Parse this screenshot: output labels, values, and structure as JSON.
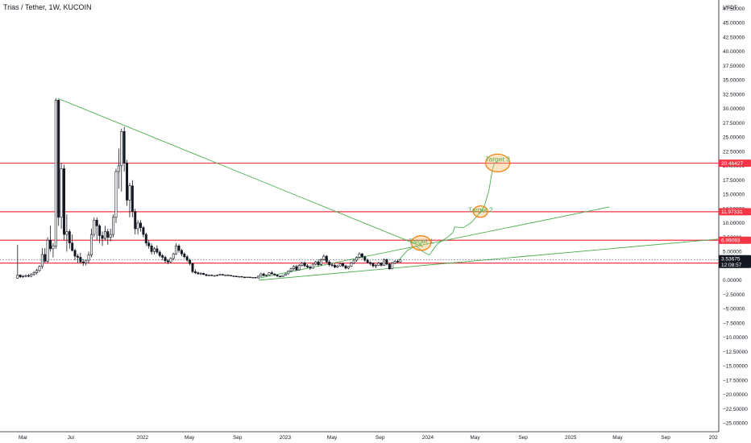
{
  "chart_title": "Trias / Tether, 1W, KUCOIN",
  "chart_data": {
    "type": "candlestick",
    "title": "Trias / Tether, 1W, KUCOIN",
    "y_axis": {
      "currency": "USDT",
      "ticks": [
        "47.50000",
        "45.00000",
        "42.50000",
        "40.00000",
        "37.50000",
        "35.00000",
        "32.50000",
        "30.00000",
        "27.50000",
        "25.00000",
        "22.50000",
        "20.00000",
        "17.50000",
        "15.00000",
        "12.50000",
        "10.00000",
        "7.50000",
        "5.00000",
        "2.50000",
        "0.00000",
        "−2.50000",
        "−5.00000",
        "−7.50000",
        "−10.00000",
        "−12.50000",
        "−15.00000",
        "−17.50000",
        "−20.00000",
        "−22.50000",
        "−25.00000"
      ],
      "range": [
        -26.5,
        49
      ]
    },
    "x_axis": {
      "ticks": [
        "Mar",
        "Jul",
        "2022",
        "May",
        "Sep",
        "2023",
        "May",
        "Sep",
        "2024",
        "May",
        "Sep",
        "2025",
        "May",
        "Sep",
        "202"
      ],
      "range": [
        "2021-01-01",
        "2026-01-15"
      ],
      "tick_dates": [
        "2021-03-01",
        "2021-07-01",
        "2022-01-01",
        "2022-05-01",
        "2022-09-01",
        "2023-01-01",
        "2023-05-01",
        "2023-09-01",
        "2024-01-01",
        "2024-05-01",
        "2024-09-01",
        "2025-01-01",
        "2025-05-01",
        "2025-09-01",
        "2026-01-01"
      ]
    },
    "horizontal_levels": [
      {
        "value": 20.46427,
        "label": "20.46427",
        "color": "#f23645"
      },
      {
        "value": 11.97331,
        "label": "11.97331",
        "color": "#f23645"
      },
      {
        "value": 6.99093,
        "label": "6.99093",
        "color": "#f23645"
      },
      {
        "value": 2.99001,
        "label": "2.99001",
        "color": "#f23645"
      }
    ],
    "current_price": {
      "value": 3.53675,
      "label": "3.53675",
      "countdown": "12:08:57",
      "color": "#131722"
    },
    "trendlines": [
      {
        "from": [
          "2021-05-29",
          31.8
        ],
        "to": [
          "2023-12-20",
          5.8
        ],
        "color": "#4caf50"
      },
      {
        "from": [
          "2022-10-25",
          0.35
        ],
        "to": [
          "2025-04-10",
          12.8
        ],
        "color": "#4caf50"
      },
      {
        "from": [
          "2022-10-25",
          0.0
        ],
        "to": [
          "2026-01-15",
          7.2
        ],
        "color": "#4caf50"
      }
    ],
    "projection_path": [
      [
        "2023-10-20",
        3.6
      ],
      [
        "2023-11-10",
        5.2
      ],
      [
        "2023-12-01",
        6.0
      ],
      [
        "2023-12-20",
        5.0
      ],
      [
        "2024-01-05",
        4.4
      ],
      [
        "2024-01-25",
        6.3
      ],
      [
        "2024-02-20",
        7.5
      ],
      [
        "2024-03-05",
        8.3
      ],
      [
        "2024-03-10",
        9.3
      ],
      [
        "2024-04-01",
        9.2
      ],
      [
        "2024-04-20",
        10.0
      ],
      [
        "2024-05-10",
        11.5
      ],
      [
        "2024-05-25",
        13.0
      ],
      [
        "2024-06-05",
        15.5
      ],
      [
        "2024-06-15",
        19.5
      ],
      [
        "2024-06-20",
        20.5
      ]
    ],
    "targets": [
      {
        "label": "Target 1",
        "date": "2023-12-15",
        "value": 6.5
      },
      {
        "label": "Target 2",
        "date": "2024-05-15",
        "value": 12.0
      },
      {
        "label": "Target 3",
        "date": "2024-06-28",
        "value": 20.5
      }
    ],
    "candles": [
      [
        "2021-02-15",
        0.35,
        6.2,
        0.3,
        0.9
      ],
      [
        "2021-02-22",
        0.9,
        1.0,
        0.4,
        0.6
      ],
      [
        "2021-03-01",
        0.6,
        0.9,
        0.4,
        0.7
      ],
      [
        "2021-03-08",
        0.7,
        1.0,
        0.5,
        0.8
      ],
      [
        "2021-03-15",
        0.8,
        1.1,
        0.5,
        0.7
      ],
      [
        "2021-03-22",
        0.7,
        1.2,
        0.5,
        1.0
      ],
      [
        "2021-03-29",
        1.0,
        1.6,
        0.8,
        1.3
      ],
      [
        "2021-04-05",
        1.3,
        2.0,
        1.0,
        1.7
      ],
      [
        "2021-04-12",
        1.7,
        2.6,
        1.4,
        2.4
      ],
      [
        "2021-04-19",
        2.4,
        5.6,
        2.0,
        4.5
      ],
      [
        "2021-04-26",
        4.5,
        5.6,
        3.0,
        3.3
      ],
      [
        "2021-05-03",
        3.3,
        7.5,
        3.0,
        7.0
      ],
      [
        "2021-05-10",
        7.0,
        9.5,
        5.0,
        5.5
      ],
      [
        "2021-05-17",
        5.5,
        6.5,
        4.0,
        6.0
      ],
      [
        "2021-05-24",
        6.0,
        31.8,
        5.5,
        31.5
      ],
      [
        "2021-05-31",
        31.5,
        31.6,
        9.5,
        11.0
      ],
      [
        "2021-06-07",
        11.0,
        20.5,
        9.0,
        19.5
      ],
      [
        "2021-06-14",
        19.5,
        20.2,
        7.0,
        8.0
      ],
      [
        "2021-06-21",
        8.0,
        11.5,
        5.0,
        8.5
      ],
      [
        "2021-06-28",
        8.5,
        8.9,
        5.5,
        6.5
      ],
      [
        "2021-07-05",
        6.5,
        8.0,
        5.0,
        5.2
      ],
      [
        "2021-07-12",
        5.2,
        5.5,
        3.5,
        4.2
      ],
      [
        "2021-07-19",
        4.2,
        4.6,
        3.0,
        4.0
      ],
      [
        "2021-07-26",
        4.0,
        4.8,
        3.0,
        3.2
      ],
      [
        "2021-08-02",
        3.2,
        3.7,
        2.5,
        3.0
      ],
      [
        "2021-08-09",
        3.0,
        3.6,
        2.6,
        3.5
      ],
      [
        "2021-08-16",
        3.5,
        5.0,
        3.0,
        4.4
      ],
      [
        "2021-08-23",
        4.4,
        9.0,
        4.0,
        8.0
      ],
      [
        "2021-08-30",
        8.0,
        11.0,
        7.5,
        10.5
      ],
      [
        "2021-09-06",
        10.5,
        11.0,
        7.0,
        9.5
      ],
      [
        "2021-09-13",
        9.5,
        9.8,
        6.5,
        7.8
      ],
      [
        "2021-09-20",
        7.8,
        8.5,
        6.0,
        7.3
      ],
      [
        "2021-09-27",
        7.3,
        9.5,
        7.0,
        8.5
      ],
      [
        "2021-10-04",
        8.5,
        9.0,
        6.2,
        7.5
      ],
      [
        "2021-10-11",
        7.5,
        9.0,
        6.8,
        8.0
      ],
      [
        "2021-10-18",
        8.0,
        11.5,
        7.5,
        11.0
      ],
      [
        "2021-10-25",
        11.0,
        19.5,
        10.0,
        19.0
      ],
      [
        "2021-11-01",
        19.0,
        23.0,
        16.0,
        20.0
      ],
      [
        "2021-11-08",
        20.0,
        26.5,
        15.5,
        26.0
      ],
      [
        "2021-11-15",
        26.0,
        26.8,
        19.0,
        20.5
      ],
      [
        "2021-11-22",
        20.5,
        21.0,
        13.0,
        14.0
      ],
      [
        "2021-11-29",
        14.0,
        17.0,
        11.0,
        16.5
      ],
      [
        "2021-12-06",
        16.5,
        17.5,
        11.0,
        12.0
      ],
      [
        "2021-12-13",
        12.0,
        12.5,
        8.0,
        9.0
      ],
      [
        "2021-12-20",
        9.0,
        10.5,
        8.0,
        10.0
      ],
      [
        "2021-12-27",
        10.0,
        10.5,
        8.5,
        9.2
      ],
      [
        "2022-01-03",
        9.2,
        9.5,
        7.5,
        8.0
      ],
      [
        "2022-01-10",
        8.0,
        8.3,
        6.0,
        6.5
      ],
      [
        "2022-01-17",
        6.5,
        7.0,
        5.5,
        6.0
      ],
      [
        "2022-01-24",
        6.0,
        6.4,
        4.5,
        5.0
      ],
      [
        "2022-01-31",
        5.0,
        5.8,
        4.5,
        5.5
      ],
      [
        "2022-02-07",
        5.5,
        6.1,
        4.6,
        4.9
      ],
      [
        "2022-02-14",
        4.9,
        5.2,
        4.0,
        4.3
      ],
      [
        "2022-02-21",
        4.3,
        4.6,
        3.5,
        4.0
      ],
      [
        "2022-02-28",
        4.0,
        4.3,
        3.0,
        3.4
      ],
      [
        "2022-03-07",
        3.4,
        3.7,
        2.8,
        3.2
      ],
      [
        "2022-03-14",
        3.2,
        4.0,
        3.0,
        3.8
      ],
      [
        "2022-03-21",
        3.8,
        4.8,
        3.5,
        4.6
      ],
      [
        "2022-03-28",
        4.6,
        6.5,
        4.4,
        6.0
      ],
      [
        "2022-04-04",
        6.0,
        6.3,
        4.8,
        5.2
      ],
      [
        "2022-04-11",
        5.2,
        5.5,
        4.2,
        4.6
      ],
      [
        "2022-04-18",
        4.6,
        4.9,
        3.8,
        4.1
      ],
      [
        "2022-04-25",
        4.1,
        4.4,
        3.2,
        3.5
      ],
      [
        "2022-05-02",
        3.5,
        3.8,
        2.6,
        2.9
      ],
      [
        "2022-05-09",
        2.9,
        3.0,
        1.2,
        1.5
      ],
      [
        "2022-05-16",
        1.5,
        1.9,
        1.1,
        1.3
      ],
      [
        "2022-05-23",
        1.3,
        1.5,
        1.0,
        1.1
      ],
      [
        "2022-05-30",
        1.1,
        1.4,
        0.9,
        1.2
      ],
      [
        "2022-06-06",
        1.2,
        1.3,
        0.9,
        1.0
      ],
      [
        "2022-06-13",
        1.0,
        1.1,
        0.7,
        0.8
      ],
      [
        "2022-06-20",
        0.8,
        1.0,
        0.7,
        0.9
      ],
      [
        "2022-06-27",
        0.9,
        1.0,
        0.7,
        0.8
      ],
      [
        "2022-07-04",
        0.8,
        0.9,
        0.7,
        0.8
      ],
      [
        "2022-07-11",
        0.8,
        1.0,
        0.7,
        0.9
      ],
      [
        "2022-07-18",
        0.9,
        1.1,
        0.8,
        1.0
      ],
      [
        "2022-07-25",
        1.0,
        1.1,
        0.8,
        0.9
      ],
      [
        "2022-08-01",
        0.9,
        1.0,
        0.8,
        0.9
      ],
      [
        "2022-08-08",
        0.9,
        1.0,
        0.8,
        0.85
      ],
      [
        "2022-08-15",
        0.85,
        0.9,
        0.7,
        0.75
      ],
      [
        "2022-08-22",
        0.75,
        0.8,
        0.6,
        0.7
      ],
      [
        "2022-08-29",
        0.7,
        0.75,
        0.55,
        0.6
      ],
      [
        "2022-09-05",
        0.6,
        0.7,
        0.5,
        0.65
      ],
      [
        "2022-09-12",
        0.65,
        0.7,
        0.5,
        0.55
      ],
      [
        "2022-09-19",
        0.55,
        0.6,
        0.45,
        0.5
      ],
      [
        "2022-09-26",
        0.5,
        0.6,
        0.45,
        0.55
      ],
      [
        "2022-10-03",
        0.55,
        0.6,
        0.4,
        0.45
      ],
      [
        "2022-10-10",
        0.45,
        0.55,
        0.35,
        0.5
      ],
      [
        "2022-10-17",
        0.5,
        0.55,
        0.35,
        0.4
      ],
      [
        "2022-10-24",
        0.4,
        0.8,
        0.35,
        0.7
      ],
      [
        "2022-10-31",
        0.7,
        1.3,
        0.6,
        1.1
      ],
      [
        "2022-11-07",
        1.1,
        1.3,
        0.7,
        0.8
      ],
      [
        "2022-11-14",
        0.8,
        1.0,
        0.7,
        0.9
      ],
      [
        "2022-11-21",
        0.9,
        1.4,
        0.8,
        1.3
      ],
      [
        "2022-11-28",
        1.3,
        1.6,
        1.0,
        1.1
      ],
      [
        "2022-12-05",
        1.1,
        1.2,
        0.8,
        0.9
      ],
      [
        "2022-12-12",
        0.9,
        1.0,
        0.6,
        0.7
      ],
      [
        "2022-12-19",
        0.7,
        0.8,
        0.5,
        0.6
      ],
      [
        "2022-12-26",
        0.6,
        0.9,
        0.55,
        0.85
      ],
      [
        "2023-01-02",
        0.85,
        1.2,
        0.8,
        1.1
      ],
      [
        "2023-01-09",
        1.1,
        1.7,
        1.0,
        1.6
      ],
      [
        "2023-01-16",
        1.6,
        2.2,
        1.4,
        2.0
      ],
      [
        "2023-01-23",
        2.0,
        2.6,
        1.7,
        2.4
      ],
      [
        "2023-01-30",
        2.4,
        2.7,
        1.6,
        1.8
      ],
      [
        "2023-02-06",
        1.8,
        2.8,
        1.7,
        2.6
      ],
      [
        "2023-02-13",
        2.6,
        3.2,
        2.4,
        3.0
      ],
      [
        "2023-02-20",
        3.0,
        3.3,
        2.3,
        2.5
      ],
      [
        "2023-02-27",
        2.5,
        2.8,
        2.1,
        2.3
      ],
      [
        "2023-03-06",
        2.3,
        2.6,
        1.8,
        2.1
      ],
      [
        "2023-03-13",
        2.1,
        2.9,
        2.0,
        2.8
      ],
      [
        "2023-03-20",
        2.8,
        3.4,
        2.6,
        3.2
      ],
      [
        "2023-03-27",
        3.2,
        3.6,
        2.4,
        2.7
      ],
      [
        "2023-04-03",
        2.7,
        3.8,
        2.5,
        3.6
      ],
      [
        "2023-04-10",
        3.6,
        4.5,
        3.4,
        4.2
      ],
      [
        "2023-04-17",
        4.2,
        4.4,
        3.0,
        3.2
      ],
      [
        "2023-04-24",
        3.2,
        3.5,
        2.4,
        2.7
      ],
      [
        "2023-05-01",
        2.7,
        3.0,
        2.3,
        2.6
      ],
      [
        "2023-05-08",
        2.6,
        2.9,
        2.1,
        2.3
      ],
      [
        "2023-05-15",
        2.3,
        2.7,
        2.1,
        2.5
      ],
      [
        "2023-05-22",
        2.5,
        3.1,
        2.4,
        2.9
      ],
      [
        "2023-05-29",
        2.9,
        3.1,
        2.3,
        2.5
      ],
      [
        "2023-06-05",
        2.5,
        2.7,
        1.9,
        2.1
      ],
      [
        "2023-06-12",
        2.1,
        2.5,
        1.9,
        2.4
      ],
      [
        "2023-06-19",
        2.4,
        3.2,
        2.3,
        3.0
      ],
      [
        "2023-06-26",
        3.0,
        3.7,
        2.8,
        3.5
      ],
      [
        "2023-07-03",
        3.5,
        4.2,
        3.2,
        4.0
      ],
      [
        "2023-07-10",
        4.0,
        4.9,
        3.8,
        4.6
      ],
      [
        "2023-07-17",
        4.6,
        4.8,
        3.8,
        4.1
      ],
      [
        "2023-07-24",
        4.1,
        4.3,
        3.2,
        3.5
      ],
      [
        "2023-07-31",
        3.5,
        3.8,
        2.9,
        3.1
      ],
      [
        "2023-08-07",
        3.1,
        3.3,
        2.6,
        2.9
      ],
      [
        "2023-08-14",
        2.9,
        3.1,
        2.2,
        2.5
      ],
      [
        "2023-08-21",
        2.5,
        2.8,
        2.1,
        2.6
      ],
      [
        "2023-08-28",
        2.6,
        3.2,
        2.5,
        3.0
      ],
      [
        "2023-09-04",
        3.0,
        3.1,
        2.4,
        2.6
      ],
      [
        "2023-09-11",
        2.6,
        3.8,
        2.5,
        3.6
      ],
      [
        "2023-09-18",
        3.6,
        3.8,
        2.6,
        2.8
      ],
      [
        "2023-09-25",
        2.8,
        3.0,
        1.8,
        2.0
      ],
      [
        "2023-10-02",
        2.0,
        3.2,
        1.9,
        3.0
      ],
      [
        "2023-10-09",
        3.0,
        3.5,
        2.8,
        3.3
      ],
      [
        "2023-10-16",
        3.3,
        3.6,
        3.0,
        3.2
      ],
      [
        "2023-10-23",
        3.2,
        3.7,
        3.1,
        3.53675
      ]
    ],
    "colors": {
      "up": "#131722",
      "down": "#131722",
      "up_fill": "#ffffff",
      "down_fill": "#131722",
      "level": "#f23645",
      "trend": "#4caf50",
      "target_fill": "#f7b25a",
      "target_stroke": "#f57c00",
      "current_bg": "#131722"
    }
  }
}
